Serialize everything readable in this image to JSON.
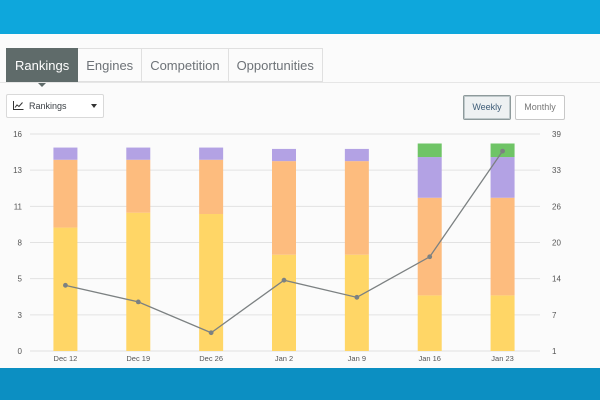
{
  "tabs": [
    "Rankings",
    "Engines",
    "Competition",
    "Opportunities"
  ],
  "dropdown": {
    "label": "Rankings",
    "icon": "line-chart-icon"
  },
  "toggles": {
    "weekly": "Weekly",
    "monthly": "Monthly",
    "selected": "Weekly"
  },
  "colors": {
    "yellow": "#ffd666",
    "orange": "#fdbc7e",
    "purple": "#b3a2e4",
    "green": "#6fc466",
    "line": "#7c8182",
    "active_tab": "#5f6b6a"
  },
  "chart_data": {
    "type": "bar",
    "stacked": true,
    "categories": [
      "Dec 12",
      "Dec 19",
      "Dec 26",
      "Jan 2",
      "Jan 9",
      "Jan 16",
      "Jan 23"
    ],
    "left_axis": {
      "ticks": [
        "0",
        "3",
        "5",
        "8",
        "11",
        "13",
        "16"
      ],
      "ylim": [
        0,
        16
      ]
    },
    "right_axis": {
      "ticks": [
        "1",
        "7",
        "14",
        "20",
        "26",
        "33",
        "39"
      ],
      "ylim": [
        1,
        39
      ]
    },
    "series": [
      {
        "color": "#ffd666",
        "values": [
          9.1,
          10.2,
          10.1,
          7.1,
          7.1,
          4.1,
          4.1
        ]
      },
      {
        "color": "#fdbc7e",
        "values": [
          5.0,
          3.9,
          4.0,
          6.9,
          6.9,
          7.2,
          7.2
        ]
      },
      {
        "color": "#b3a2e4",
        "values": [
          0.9,
          0.9,
          0.9,
          0.9,
          0.9,
          3.0,
          3.0
        ]
      },
      {
        "color": "#6fc466",
        "values": [
          0,
          0,
          0,
          0,
          0,
          1.0,
          1.0
        ]
      }
    ],
    "line": {
      "axis": "right",
      "color": "#7c8182",
      "values": [
        12.5,
        9.6,
        4.2,
        13.4,
        10.4,
        17.5,
        36.0
      ]
    },
    "grid": true
  }
}
